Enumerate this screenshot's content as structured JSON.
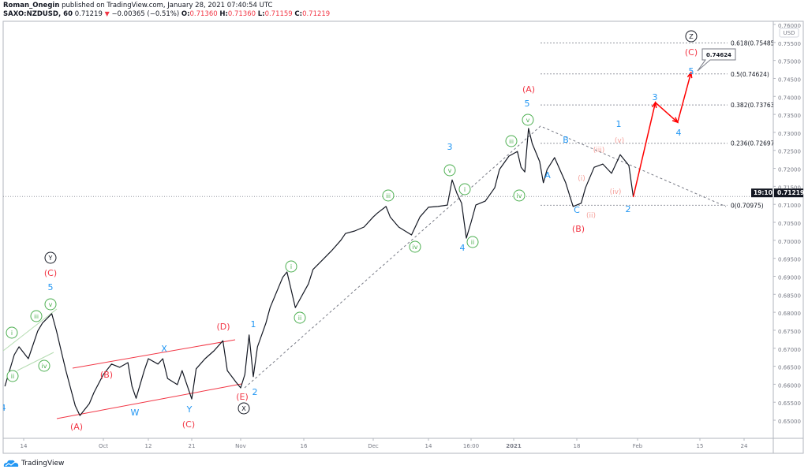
{
  "header": {
    "author": "Roman_Onegin",
    "published": "published on TradingView.com, January 28, 2021 07:40:54 UTC",
    "symbol": "SAXO:NZDUSD, 60",
    "last": "0.71219",
    "change": "−0.00365 (−0.51%)",
    "o_label": "O:",
    "o": "0.71360",
    "h_label": "H:",
    "h": "0.71360",
    "l_label": "L:",
    "l": "0.71159",
    "c_label": "C:",
    "c": "0.71219",
    "direction_icon": "triangle-down-icon"
  },
  "footer": {
    "brand": "TradingView",
    "logo_icon": "tradingview-cloud-icon"
  },
  "colors": {
    "price": "#131722",
    "red": "#f23645",
    "blue": "#2196f3",
    "green": "#4caf50",
    "pink": "#f4a09a",
    "forecast": "#ff0000"
  },
  "chart_data": {
    "type": "line",
    "title": "",
    "currency": "USD",
    "ylim": [
      0.645,
      0.76
    ],
    "y_ticks": [
      "0.76000",
      "0.75500",
      "0.75000",
      "0.74500",
      "0.74000",
      "0.73500",
      "0.73000",
      "0.72500",
      "0.72000",
      "0.71500",
      "0.71000",
      "0.70500",
      "0.70000",
      "0.69500",
      "0.69000",
      "0.68500",
      "0.68000",
      "0.67500",
      "0.67000",
      "0.66500",
      "0.66000",
      "0.65500",
      "0.65000"
    ],
    "x_ticks": [
      {
        "label": "14",
        "date": "2020-09-14"
      },
      {
        "label": "Oct",
        "date": "2020-10-01"
      },
      {
        "label": "12",
        "date": "2020-10-12"
      },
      {
        "label": "21",
        "date": "2020-10-21"
      },
      {
        "label": "Nov",
        "date": "2020-11-01"
      },
      {
        "label": "16",
        "date": "2020-11-16"
      },
      {
        "label": "Dec",
        "date": "2020-12-01"
      },
      {
        "label": "14",
        "date": "2020-12-14"
      },
      {
        "label": "16:00",
        "date": "2020-12-23"
      },
      {
        "label": "2021",
        "date": "2021-01-01"
      },
      {
        "label": "18",
        "date": "2021-01-18"
      },
      {
        "label": "Feb",
        "date": "2021-02-01"
      },
      {
        "label": "15",
        "date": "2021-02-15"
      },
      {
        "label": "24",
        "date": "2021-02-24"
      }
    ],
    "price_tag": "0.71219",
    "countdown": "19:10",
    "series": [
      {
        "values": [
          [
            "2020-09-10",
            0.6594
          ],
          [
            "2020-09-12",
            0.6682
          ],
          [
            "2020-09-13",
            0.6704
          ],
          [
            "2020-09-15",
            0.6671
          ],
          [
            "2020-09-17",
            0.6748
          ],
          [
            "2020-09-18",
            0.677
          ],
          [
            "2020-09-20",
            0.6796
          ],
          [
            "2020-09-21",
            0.6748
          ],
          [
            "2020-09-22",
            0.6693
          ],
          [
            "2020-09-23",
            0.6638
          ],
          [
            "2020-09-25",
            0.654
          ],
          [
            "2020-09-26",
            0.6513
          ],
          [
            "2020-09-28",
            0.6546
          ],
          [
            "2020-09-29",
            0.6577
          ],
          [
            "2020-10-01",
            0.6627
          ],
          [
            "2020-10-03",
            0.6656
          ],
          [
            "2020-10-05",
            0.6647
          ],
          [
            "2020-10-07",
            0.666
          ],
          [
            "2020-10-08",
            0.6594
          ],
          [
            "2020-10-09",
            0.6561
          ],
          [
            "2020-10-11",
            0.6638
          ],
          [
            "2020-10-12",
            0.6671
          ],
          [
            "2020-10-14",
            0.6656
          ],
          [
            "2020-10-15",
            0.6671
          ],
          [
            "2020-10-16",
            0.6616
          ],
          [
            "2020-10-18",
            0.6599
          ],
          [
            "2020-10-19",
            0.6638
          ],
          [
            "2020-10-21",
            0.6559
          ],
          [
            "2020-10-22",
            0.6643
          ],
          [
            "2020-10-24",
            0.6671
          ],
          [
            "2020-10-26",
            0.6693
          ],
          [
            "2020-10-28",
            0.6721
          ],
          [
            "2020-10-29",
            0.6638
          ],
          [
            "2020-10-31",
            0.6605
          ],
          [
            "2020-11-01",
            0.659
          ],
          [
            "2020-11-02",
            0.6627
          ],
          [
            "2020-11-03",
            0.6737
          ],
          [
            "2020-11-04",
            0.6621
          ],
          [
            "2020-11-05",
            0.6704
          ],
          [
            "2020-11-07",
            0.677
          ],
          [
            "2020-11-08",
            0.6813
          ],
          [
            "2020-11-11",
            0.6897
          ],
          [
            "2020-11-12",
            0.6912
          ],
          [
            "2020-11-14",
            0.6813
          ],
          [
            "2020-11-17",
            0.6879
          ],
          [
            "2020-11-18",
            0.6919
          ],
          [
            "2020-11-20",
            0.6945
          ],
          [
            "2020-11-22",
            0.6971
          ],
          [
            "2020-11-24",
            0.7
          ],
          [
            "2020-11-25",
            0.7019
          ],
          [
            "2020-11-27",
            0.7026
          ],
          [
            "2020-11-29",
            0.7037
          ],
          [
            "2020-12-01",
            0.7065
          ],
          [
            "2020-12-02",
            0.7076
          ],
          [
            "2020-12-04",
            0.7094
          ],
          [
            "2020-12-05",
            0.7065
          ],
          [
            "2020-12-07",
            0.7037
          ],
          [
            "2020-12-10",
            0.7015
          ],
          [
            "2020-12-12",
            0.7065
          ],
          [
            "2020-12-14",
            0.7092
          ],
          [
            "2020-12-16",
            0.7094
          ],
          [
            "2020-12-18",
            0.7098
          ],
          [
            "2020-12-19",
            0.7168
          ],
          [
            "2020-12-20",
            0.7131
          ],
          [
            "2020-12-21",
            0.7103
          ],
          [
            "2020-12-22",
            0.7006
          ],
          [
            "2020-12-23",
            0.705
          ],
          [
            "2020-12-24",
            0.7098
          ],
          [
            "2020-12-26",
            0.7109
          ],
          [
            "2020-12-28",
            0.7146
          ],
          [
            "2020-12-29",
            0.7197
          ],
          [
            "2020-12-31",
            0.7234
          ],
          [
            "2021-01-02",
            0.7247
          ],
          [
            "2021-01-03",
            0.7203
          ],
          [
            "2021-01-04",
            0.719
          ],
          [
            "2021-01-05",
            0.7311
          ],
          [
            "2021-01-06",
            0.7269
          ],
          [
            "2021-01-08",
            0.7219
          ],
          [
            "2021-01-09",
            0.716
          ],
          [
            "2021-01-10",
            0.7197
          ],
          [
            "2021-01-12",
            0.723
          ],
          [
            "2021-01-15",
            0.716
          ],
          [
            "2021-01-17",
            0.7094
          ],
          [
            "2021-01-19",
            0.7103
          ],
          [
            "2021-01-20",
            0.7146
          ],
          [
            "2021-01-22",
            0.7203
          ],
          [
            "2021-01-24",
            0.7212
          ],
          [
            "2021-01-26",
            0.7186
          ],
          [
            "2021-01-28",
            0.7238
          ],
          [
            "2021-01-30",
            0.7208
          ],
          [
            "2021-01-31",
            0.7122
          ]
        ]
      }
    ],
    "forecast_path": [
      [
        "2021-01-31",
        0.712
      ],
      [
        "2021-02-05",
        0.7383
      ],
      [
        "2021-02-10",
        0.7328
      ],
      [
        "2021-02-13",
        0.7466
      ]
    ],
    "forecast_callout": "0.74624",
    "fib_levels": [
      {
        "label": "0.618(0.75485)",
        "price": 0.75485
      },
      {
        "label": "0.5(0.74624)",
        "price": 0.74624
      },
      {
        "label": "0.382(0.73763)",
        "price": 0.73763
      },
      {
        "label": "0.236(0.72697)",
        "price": 0.72697
      },
      {
        "label": "0(0.70975)",
        "price": 0.70975
      }
    ],
    "wave_labels": [
      {
        "text": "Y",
        "style": "circle-black"
      },
      {
        "text": "X",
        "style": "circle-black"
      },
      {
        "text": "Z",
        "style": "circle-black"
      },
      {
        "text": "(C)",
        "style": "red"
      },
      {
        "text": "(B)",
        "style": "red"
      },
      {
        "text": "(A)",
        "style": "red"
      },
      {
        "text": "(D)",
        "style": "red"
      },
      {
        "text": "(E)",
        "style": "red"
      },
      {
        "text": "(C)",
        "style": "red"
      },
      {
        "text": "(A)",
        "style": "red"
      },
      {
        "text": "(B)",
        "style": "red"
      },
      {
        "text": "(C)",
        "style": "red"
      },
      {
        "text": "5",
        "style": "blue"
      },
      {
        "text": "X",
        "style": "blue"
      },
      {
        "text": "W",
        "style": "blue"
      },
      {
        "text": "Y",
        "style": "blue"
      },
      {
        "text": "1",
        "style": "blue"
      },
      {
        "text": "2",
        "style": "blue"
      },
      {
        "text": "3",
        "style": "blue"
      },
      {
        "text": "4",
        "style": "blue"
      },
      {
        "text": "5",
        "style": "blue"
      },
      {
        "text": "A",
        "style": "blue"
      },
      {
        "text": "B",
        "style": "blue"
      },
      {
        "text": "C",
        "style": "blue"
      },
      {
        "text": "1",
        "style": "blue"
      },
      {
        "text": "2",
        "style": "blue"
      },
      {
        "text": "3",
        "style": "blue"
      },
      {
        "text": "4",
        "style": "blue"
      },
      {
        "text": "5",
        "style": "blue"
      },
      {
        "text": "4",
        "style": "blue"
      },
      {
        "text": "i",
        "style": "circle-green"
      },
      {
        "text": "ii",
        "style": "circle-green"
      },
      {
        "text": "iii",
        "style": "circle-green"
      },
      {
        "text": "iv",
        "style": "circle-green"
      },
      {
        "text": "v",
        "style": "circle-green"
      },
      {
        "text": "i",
        "style": "circle-green"
      },
      {
        "text": "ii",
        "style": "circle-green"
      },
      {
        "text": "iii",
        "style": "circle-green"
      },
      {
        "text": "iv",
        "style": "circle-green"
      },
      {
        "text": "v",
        "style": "circle-green"
      },
      {
        "text": "i",
        "style": "circle-green"
      },
      {
        "text": "ii",
        "style": "circle-green"
      },
      {
        "text": "iii",
        "style": "circle-green"
      },
      {
        "text": "iv",
        "style": "circle-green"
      },
      {
        "text": "v",
        "style": "circle-green"
      },
      {
        "text": "(i)",
        "style": "pink"
      },
      {
        "text": "(ii)",
        "style": "pink"
      },
      {
        "text": "(iii)",
        "style": "pink"
      },
      {
        "text": "(iv)",
        "style": "pink"
      },
      {
        "text": "(v)",
        "style": "pink"
      }
    ]
  }
}
